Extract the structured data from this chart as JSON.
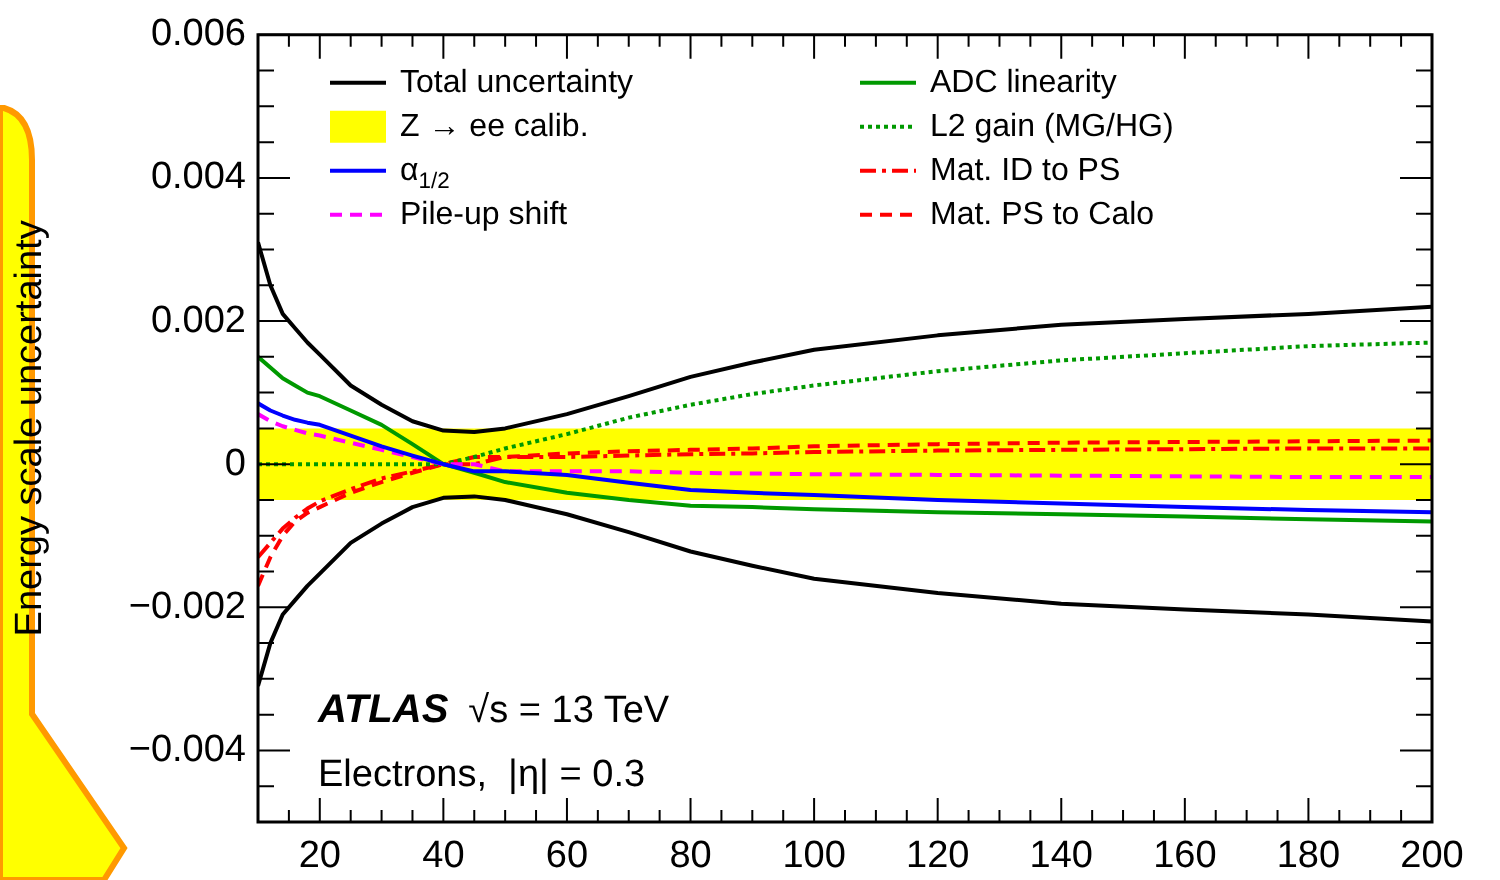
{
  "chart_data": {
    "type": "line",
    "ylabel": "Energy scale uncertainty",
    "x": [
      10,
      12,
      14,
      16,
      18,
      20,
      25,
      30,
      35,
      40,
      45,
      50,
      60,
      70,
      80,
      90,
      100,
      120,
      140,
      160,
      180,
      200
    ],
    "xlim": [
      10,
      200
    ],
    "xticks": [
      {
        "value": 10,
        "label": null
      },
      {
        "value": 15,
        "label": null
      },
      20,
      {
        "value": 25,
        "label": null
      },
      {
        "value": 30,
        "label": null
      },
      {
        "value": 35,
        "label": null
      },
      40,
      {
        "value": 45,
        "label": null
      },
      {
        "value": 50,
        "label": null
      },
      {
        "value": 55,
        "label": null
      },
      60,
      {
        "value": 65,
        "label": null
      },
      {
        "value": 70,
        "label": null
      },
      {
        "value": 75,
        "label": null
      },
      80,
      {
        "value": 85,
        "label": null
      },
      {
        "value": 90,
        "label": null
      },
      {
        "value": 95,
        "label": null
      },
      100,
      {
        "value": 105,
        "label": null
      },
      {
        "value": 110,
        "label": null
      },
      {
        "value": 115,
        "label": null
      },
      120,
      {
        "value": 125,
        "label": null
      },
      {
        "value": 130,
        "label": null
      },
      {
        "value": 135,
        "label": null
      },
      140,
      {
        "value": 145,
        "label": null
      },
      {
        "value": 150,
        "label": null
      },
      {
        "value": 155,
        "label": null
      },
      160,
      {
        "value": 165,
        "label": null
      },
      {
        "value": 170,
        "label": null
      },
      {
        "value": 175,
        "label": null
      },
      180,
      {
        "value": 185,
        "label": null
      },
      {
        "value": 190,
        "label": null
      },
      {
        "value": 195,
        "label": null
      },
      200
    ],
    "ylim": [
      -0.005,
      0.006
    ],
    "yticks": [
      {
        "value": -0.0045,
        "label": null
      },
      {
        "value": -0.004,
        "label": "−0.004"
      },
      {
        "value": -0.0035,
        "label": null
      },
      {
        "value": -0.003,
        "label": null
      },
      {
        "value": -0.0025,
        "label": null
      },
      {
        "value": -0.002,
        "label": "−0.002"
      },
      {
        "value": -0.0015,
        "label": null
      },
      {
        "value": -0.001,
        "label": null
      },
      {
        "value": -0.0005,
        "label": null
      },
      0,
      {
        "value": 0.0005,
        "label": null
      },
      {
        "value": 0.001,
        "label": null
      },
      {
        "value": 0.0015,
        "label": null
      },
      0.002,
      {
        "value": 0.0025,
        "label": null
      },
      {
        "value": 0.003,
        "label": null
      },
      {
        "value": 0.0035,
        "label": null
      },
      0.004,
      {
        "value": 0.0045,
        "label": null
      },
      {
        "value": 0.005,
        "label": null
      },
      {
        "value": 0.0055,
        "label": null
      },
      0.006
    ],
    "grid": false,
    "legend": "top",
    "marker": "none",
    "bands": [
      {
        "axis": "y",
        "from": -0.0005,
        "to": 0.0005,
        "label": "Z → ee calib.",
        "color": "#ffff00"
      }
    ],
    "series": [
      {
        "name": "Total uncertainty",
        "color": "#000000",
        "line_style": "solid",
        "values": [
          0.0031,
          0.0025,
          0.0021,
          0.0019,
          0.0017,
          0.00153,
          0.0011,
          0.00083,
          0.0006,
          0.00047,
          0.00045,
          0.0005,
          0.0007,
          0.00095,
          0.00122,
          0.00142,
          0.0016,
          0.0018,
          0.00195,
          0.00203,
          0.0021,
          0.0022
        ]
      },
      {
        "color": "#000000",
        "line_style": "solid",
        "values": [
          -0.0031,
          -0.0025,
          -0.0021,
          -0.0019,
          -0.0017,
          -0.00153,
          -0.0011,
          -0.00083,
          -0.0006,
          -0.00047,
          -0.00045,
          -0.0005,
          -0.0007,
          -0.00095,
          -0.00122,
          -0.00142,
          -0.0016,
          -0.0018,
          -0.00195,
          -0.00203,
          -0.0021,
          -0.0022
        ]
      },
      {
        "name": "α$_{1/2}$",
        "color": "#0000ff",
        "line_style": "solid",
        "values": [
          0.00085,
          0.00075,
          0.00068,
          0.00062,
          0.00058,
          0.00055,
          0.0004,
          0.00025,
          0.00012,
          0,
          -0.0001,
          -0.0001,
          -0.00015,
          -0.00026,
          -0.00036,
          -0.0004,
          -0.00043,
          -0.0005,
          -0.00055,
          -0.0006,
          -0.00064,
          -0.00067
        ]
      },
      {
        "name": "Pile-up shift",
        "color": "#ff00ff",
        "line_style": "dashed",
        "values": [
          0.0007,
          0.0006,
          0.00053,
          0.00048,
          0.00043,
          0.0004,
          0.0003,
          0.0002,
          0.0001,
          0,
          0,
          -0.0001,
          -0.0001,
          -0.0001,
          -0.00012,
          -0.00013,
          -0.00014,
          -0.00015,
          -0.00016,
          -0.00017,
          -0.00018,
          -0.00018
        ]
      },
      {
        "name": "ADC linearity",
        "color": "#009900",
        "line_style": "solid",
        "values": [
          0.0015,
          0.00135,
          0.0012,
          0.0011,
          0.001,
          0.00095,
          0.00075,
          0.00055,
          0.00028,
          0,
          -0.00012,
          -0.00025,
          -0.0004,
          -0.0005,
          -0.00058,
          -0.0006,
          -0.00063,
          -0.00067,
          -0.0007,
          -0.00073,
          -0.00077,
          -0.0008
        ]
      },
      {
        "name": "L2 gain (MG/HG)",
        "color": "#009900",
        "line_style": "dotted",
        "values": [
          0,
          0,
          0,
          0,
          0,
          0,
          0,
          0,
          0,
          0,
          0.0001,
          0.00022,
          0.00042,
          0.00065,
          0.00083,
          0.00098,
          0.0011,
          0.0013,
          0.00145,
          0.00155,
          0.00165,
          0.0017
        ]
      },
      {
        "name": "Mat. ID to PS",
        "color": "#ff0000",
        "line_style": "dashdot",
        "values": [
          -0.0013,
          -0.0011,
          -0.0009,
          -0.00075,
          -0.00062,
          -0.00052,
          -0.00035,
          -0.0002,
          -0.0001,
          0,
          0,
          0.0001,
          0.0001,
          0.00012,
          0.00014,
          0.00015,
          0.00017,
          0.00019,
          0.0002,
          0.00021,
          0.00022,
          0.00022
        ]
      },
      {
        "name": "Mat. PS to Calo",
        "color": "#ff0000",
        "line_style": "dashed",
        "values": [
          -0.0017,
          -0.0013,
          -0.001,
          -0.0008,
          -0.00068,
          -0.0006,
          -0.0004,
          -0.00025,
          -0.00012,
          0,
          0.0001,
          0.0001,
          0.00015,
          0.00018,
          0.0002,
          0.00022,
          0.00025,
          0.00028,
          0.0003,
          0.00031,
          0.00032,
          0.00033
        ]
      }
    ],
    "annotations": [
      "ATLAS",
      "√s = 13 TeV",
      "Electrons,  |η| = 0.3"
    ]
  }
}
